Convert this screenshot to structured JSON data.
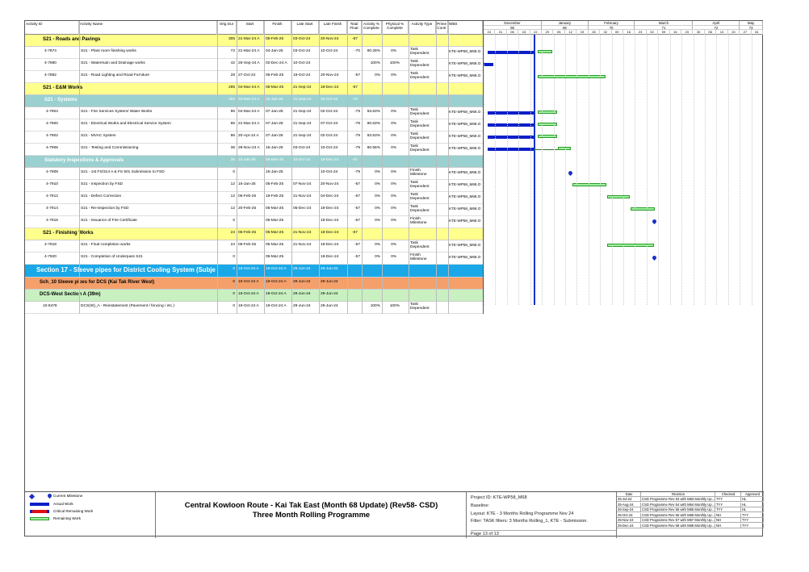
{
  "header": {
    "activity_id": "Activity ID",
    "activity_name": "Activity Name",
    "orig_dur": "Orig Dur",
    "start": "Start",
    "finish": "Finish",
    "late_start": "Late Start",
    "late_finish": "Late Finish",
    "total_float": "Total Float",
    "activity_pct": "Activity % Complete",
    "physical_pct": "Physical % Complete",
    "activity_type": "Activity Type",
    "prime_contr": "Prime Contr",
    "wbs": "WBS"
  },
  "gantt_header": {
    "months": [
      "December",
      "January",
      "February",
      "March",
      "April",
      "May"
    ],
    "periods": [
      "68",
      "69",
      "70",
      "71",
      "72",
      "73"
    ],
    "weeks": [
      "24",
      "01",
      "08",
      "15",
      "22",
      "29",
      "05",
      "12",
      "19",
      "26",
      "02",
      "09",
      "16",
      "23",
      "02",
      "09",
      "16",
      "23",
      "30",
      "06",
      "13",
      "20",
      "27",
      "04"
    ]
  },
  "bands": [
    {
      "title": "S21 - Roads and Pavings",
      "dur": "305",
      "start": "21-Mar-24 A",
      "finish": "05-Feb-25",
      "late_start": "03-Oct-24",
      "late_finish": "20-Nov-24",
      "float": "-57"
    },
    {
      "title": "S21 - E&M Works",
      "dur": "295",
      "start": "04-Mar-24 A",
      "finish": "05-Mar-25",
      "late_start": "21-Sep-24",
      "late_finish": "18-Dec-24",
      "float": "-57"
    },
    {
      "title": "S21 - Systems",
      "dur": "262",
      "start": "04-Mar-24 A",
      "finish": "15-Jan-25",
      "late_start": "21-Sep-24",
      "late_finish": "10-Oct-24",
      "float": "-79"
    },
    {
      "title": "Statutory Inspections & Approvals",
      "dur": "36",
      "start": "15-Jan-25",
      "finish": "05-Mar-25",
      "late_start": "10-Oct-24",
      "late_finish": "18-Dec-24",
      "float": "-57"
    },
    {
      "title": "S21 - Finishing Works",
      "dur": "24",
      "start": "06-Feb-25",
      "finish": "05-Mar-25",
      "late_start": "21-Nov-24",
      "late_finish": "18-Dec-24",
      "float": "-57"
    },
    {
      "title": "Section 17 - Sleeve pipes for District Cooling System (Subject to",
      "dur": "0",
      "start": "19-Oct-24 A",
      "finish": "19-Oct-24 A",
      "late_start": "29-Jun-24",
      "late_finish": "29-Jun-24",
      "float": ""
    },
    {
      "title": "Sch_10 Sleeve pipes for DCS (Kai Tak River West)",
      "dur": "0",
      "start": "19-Oct-24 A",
      "finish": "19-Oct-24 A",
      "late_start": "29-Jun-24",
      "late_finish": "29-Jun-24",
      "float": ""
    },
    {
      "title": "DCS-West Section A (39m)",
      "dur": "0",
      "start": "19-Oct-24 A",
      "finish": "19-Oct-24 A",
      "late_start": "29-Jun-24",
      "late_finish": "29-Jun-24",
      "float": ""
    }
  ],
  "rows": [
    {
      "id": "4-7874",
      "name": "S21 - Plant room finishing works",
      "dur": "72",
      "start": "21-Mar-24 A",
      "finish": "04-Jan-25",
      "ls": "03-Oct-24",
      "lf": "10-Oct-24",
      "tf": "-70",
      "ap": "90.28%",
      "pp": "0%",
      "type": "Task Dependent",
      "wbs": "KTE-WP58_M68.O"
    },
    {
      "id": "4-7880",
      "name": "S21 - Watermain and Drainage works",
      "dur": "42",
      "start": "26-Sep-24 A",
      "finish": "02-Dec-24 A",
      "ls": "10-Oct-24",
      "lf": "",
      "tf": "",
      "ap": "100%",
      "pp": "100%",
      "type": "Task Dependent",
      "wbs": "KTE-WP58_M68.O"
    },
    {
      "id": "4-7882",
      "name": "S21 - Road Lighting and Road Furniture",
      "dur": "28",
      "start": "27-Oct-24",
      "finish": "05-Feb-25",
      "ls": "19-Oct-24",
      "lf": "20-Nov-24",
      "tf": "-57",
      "ap": "0%",
      "pp": "0%",
      "type": "Task Dependent",
      "wbs": "KTE-WP58_M68.O"
    },
    {
      "id": "4-7904",
      "name": "S21 - Fire Services System/ Water Works",
      "dur": "96",
      "start": "04-Mar-24 A",
      "finish": "07-Jan-25",
      "ls": "21-Sep-24",
      "lf": "02-Oct-24",
      "tf": "-79",
      "ap": "93.63%",
      "pp": "0%",
      "type": "Task Dependent",
      "wbs": "KTE-WP58_M68.O"
    },
    {
      "id": "4-7900",
      "name": "S21 - Electrical Works and Electrical Service System",
      "dur": "96",
      "start": "21-Mar-24 A",
      "finish": "07-Jan-25",
      "ls": "21-Sep-24",
      "lf": "07-Oct-24",
      "tf": "-79",
      "ap": "90.63%",
      "pp": "0%",
      "type": "Task Dependent",
      "wbs": "KTE-WP58_M68.O"
    },
    {
      "id": "4-7902",
      "name": "S21 - MVAC System",
      "dur": "96",
      "start": "20-Apr-24 A",
      "finish": "07-Jan-25",
      "ls": "21-Sep-24",
      "lf": "02-Oct-24",
      "tf": "-79",
      "ap": "93.63%",
      "pp": "0%",
      "type": "Task Dependent",
      "wbs": "KTE-WP58_M68.O"
    },
    {
      "id": "4-7906",
      "name": "S21 - Testing and Commissioning",
      "dur": "36",
      "start": "28-Nov-24 A",
      "finish": "15-Jan-25",
      "ls": "03-Oct-24",
      "lf": "10-Oct-24",
      "tf": "-79",
      "ap": "80.56%",
      "pp": "0%",
      "type": "Task Dependent",
      "wbs": "KTE-WP58_M68.O"
    },
    {
      "id": "4-7908",
      "name": "S21 - 1st FS/314 A & FS 501 Submission to FSD",
      "dur": "0",
      "start": "",
      "finish": "15-Jan-25",
      "ls": "",
      "lf": "10-Oct-24",
      "tf": "-79",
      "ap": "0%",
      "pp": "0%",
      "type": "Finish Milestone",
      "wbs": "KTE-WP58_M68.O"
    },
    {
      "id": "4-7910",
      "name": "S21 - Inspection by FSD",
      "dur": "12",
      "start": "16-Jan-25",
      "finish": "05-Feb-25",
      "ls": "07-Nov-24",
      "lf": "20-Nov-24",
      "tf": "-57",
      "ap": "0%",
      "pp": "0%",
      "type": "Task Dependent",
      "wbs": "KTE-WP58_M68.O"
    },
    {
      "id": "4-7912",
      "name": "S21 - Defect Correction",
      "dur": "12",
      "start": "06-Feb-25",
      "finish": "19-Feb-25",
      "ls": "21-Nov-24",
      "lf": "04-Dec-24",
      "tf": "-57",
      "ap": "0%",
      "pp": "0%",
      "type": "Task Dependent",
      "wbs": "KTE-WP58_M68.O"
    },
    {
      "id": "4-7914",
      "name": "S21 - Re-inspection by FSD",
      "dur": "12",
      "start": "20-Feb-25",
      "finish": "05-Mar-25",
      "ls": "05-Dec-24",
      "lf": "18-Dec-24",
      "tf": "-57",
      "ap": "0%",
      "pp": "0%",
      "type": "Task Dependent",
      "wbs": "KTE-WP58_M68.O"
    },
    {
      "id": "4-7916",
      "name": "S21 - Issuance of Fire Certificate",
      "dur": "0",
      "start": "",
      "finish": "05-Mar-25",
      "ls": "",
      "lf": "18-Dec-24",
      "tf": "-57",
      "ap": "0%",
      "pp": "0%",
      "type": "Finish Milestone",
      "wbs": "KTE-WP58_M68.O"
    },
    {
      "id": "4-7918",
      "name": "S21 - Final completion works",
      "dur": "24",
      "start": "06-Feb-25",
      "finish": "05-Mar-25",
      "ls": "21-Nov-24",
      "lf": "18-Dec-24",
      "tf": "-57",
      "ap": "0%",
      "pp": "0%",
      "type": "Task Dependent",
      "wbs": "KTE-WP58_M68.O"
    },
    {
      "id": "4-7920",
      "name": "S21 - Completion of Underpass S21",
      "dur": "0",
      "start": "",
      "finish": "05-Mar-25",
      "ls": "",
      "lf": "18-Dec-24",
      "tf": "-57",
      "ap": "0%",
      "pp": "0%",
      "type": "Finish Milestone",
      "wbs": "KTE-WP58_M68.O"
    },
    {
      "id": "10-8478",
      "name": "DCS(W)_A - Reinstatement (Pavement / fencing / etc.)",
      "dur": "0",
      "start": "19-Oct-24 A",
      "finish": "19-Oct-24 A",
      "ls": "29-Jun-24",
      "lf": "29-Jun-24",
      "tf": "",
      "ap": "100%",
      "pp": "100%",
      "type": "Task Dependent",
      "wbs": ""
    }
  ],
  "legend": {
    "current_milestone": "Current Milestone",
    "actual_work": "Actual Work",
    "critical_remaining": "Critical Remaining Work",
    "remaining_work": "Remaining Work"
  },
  "title": {
    "line1": "Central Kowloon Route - Kai Tak East (Month 68 Update) (Rev58- CSD)",
    "line2": "Three Month Rolling Programme"
  },
  "project": {
    "id": "Project ID: KTE-WP58_M68",
    "baseline": "Baseline:",
    "layout": "Layout: KTE - 3 Months Rolling Programme Nov 24",
    "filter": "Filter: TASK filters: 3 Months Rolling_1, KTE - Submission.",
    "page": "Page 13 of 13"
  },
  "revisions": {
    "headers": [
      "Date",
      "Revision",
      "Checked",
      "Approved"
    ],
    "rows": [
      [
        "25-Jul-24",
        "CSD Programme Rev 53 with M63 Monthly Up...",
        "TYY",
        "HL"
      ],
      [
        "25-Aug-24",
        "CSD Programme Rev 54 with M64 Monthly Up...",
        "TYY",
        "HL"
      ],
      [
        "25-Sep-24",
        "CSD Programme Rev 55 with M65 Monthly Up...",
        "TYY",
        "HL"
      ],
      [
        "25-Oct-24",
        "CSD Programme Rev 56 with M66 Monthly Up...",
        "NH",
        "TYY"
      ],
      [
        "25-Nov-24",
        "CSD Programme Rev 57 with M67 Monthly Up...",
        "NH",
        "TYY"
      ],
      [
        "25-Dec-24",
        "CSD Programme Rev 58 with M68 Monthly Up...",
        "NH",
        "TYY"
      ]
    ]
  },
  "colors": {
    "yellow": "#ffff8c",
    "teal": "#9ad0d0",
    "cyan": "#1aa8e8",
    "orange": "#f5a06a",
    "lightgreen": "#c8f0c0",
    "blue": "#0a1fc8",
    "green": "#9ef29e"
  }
}
